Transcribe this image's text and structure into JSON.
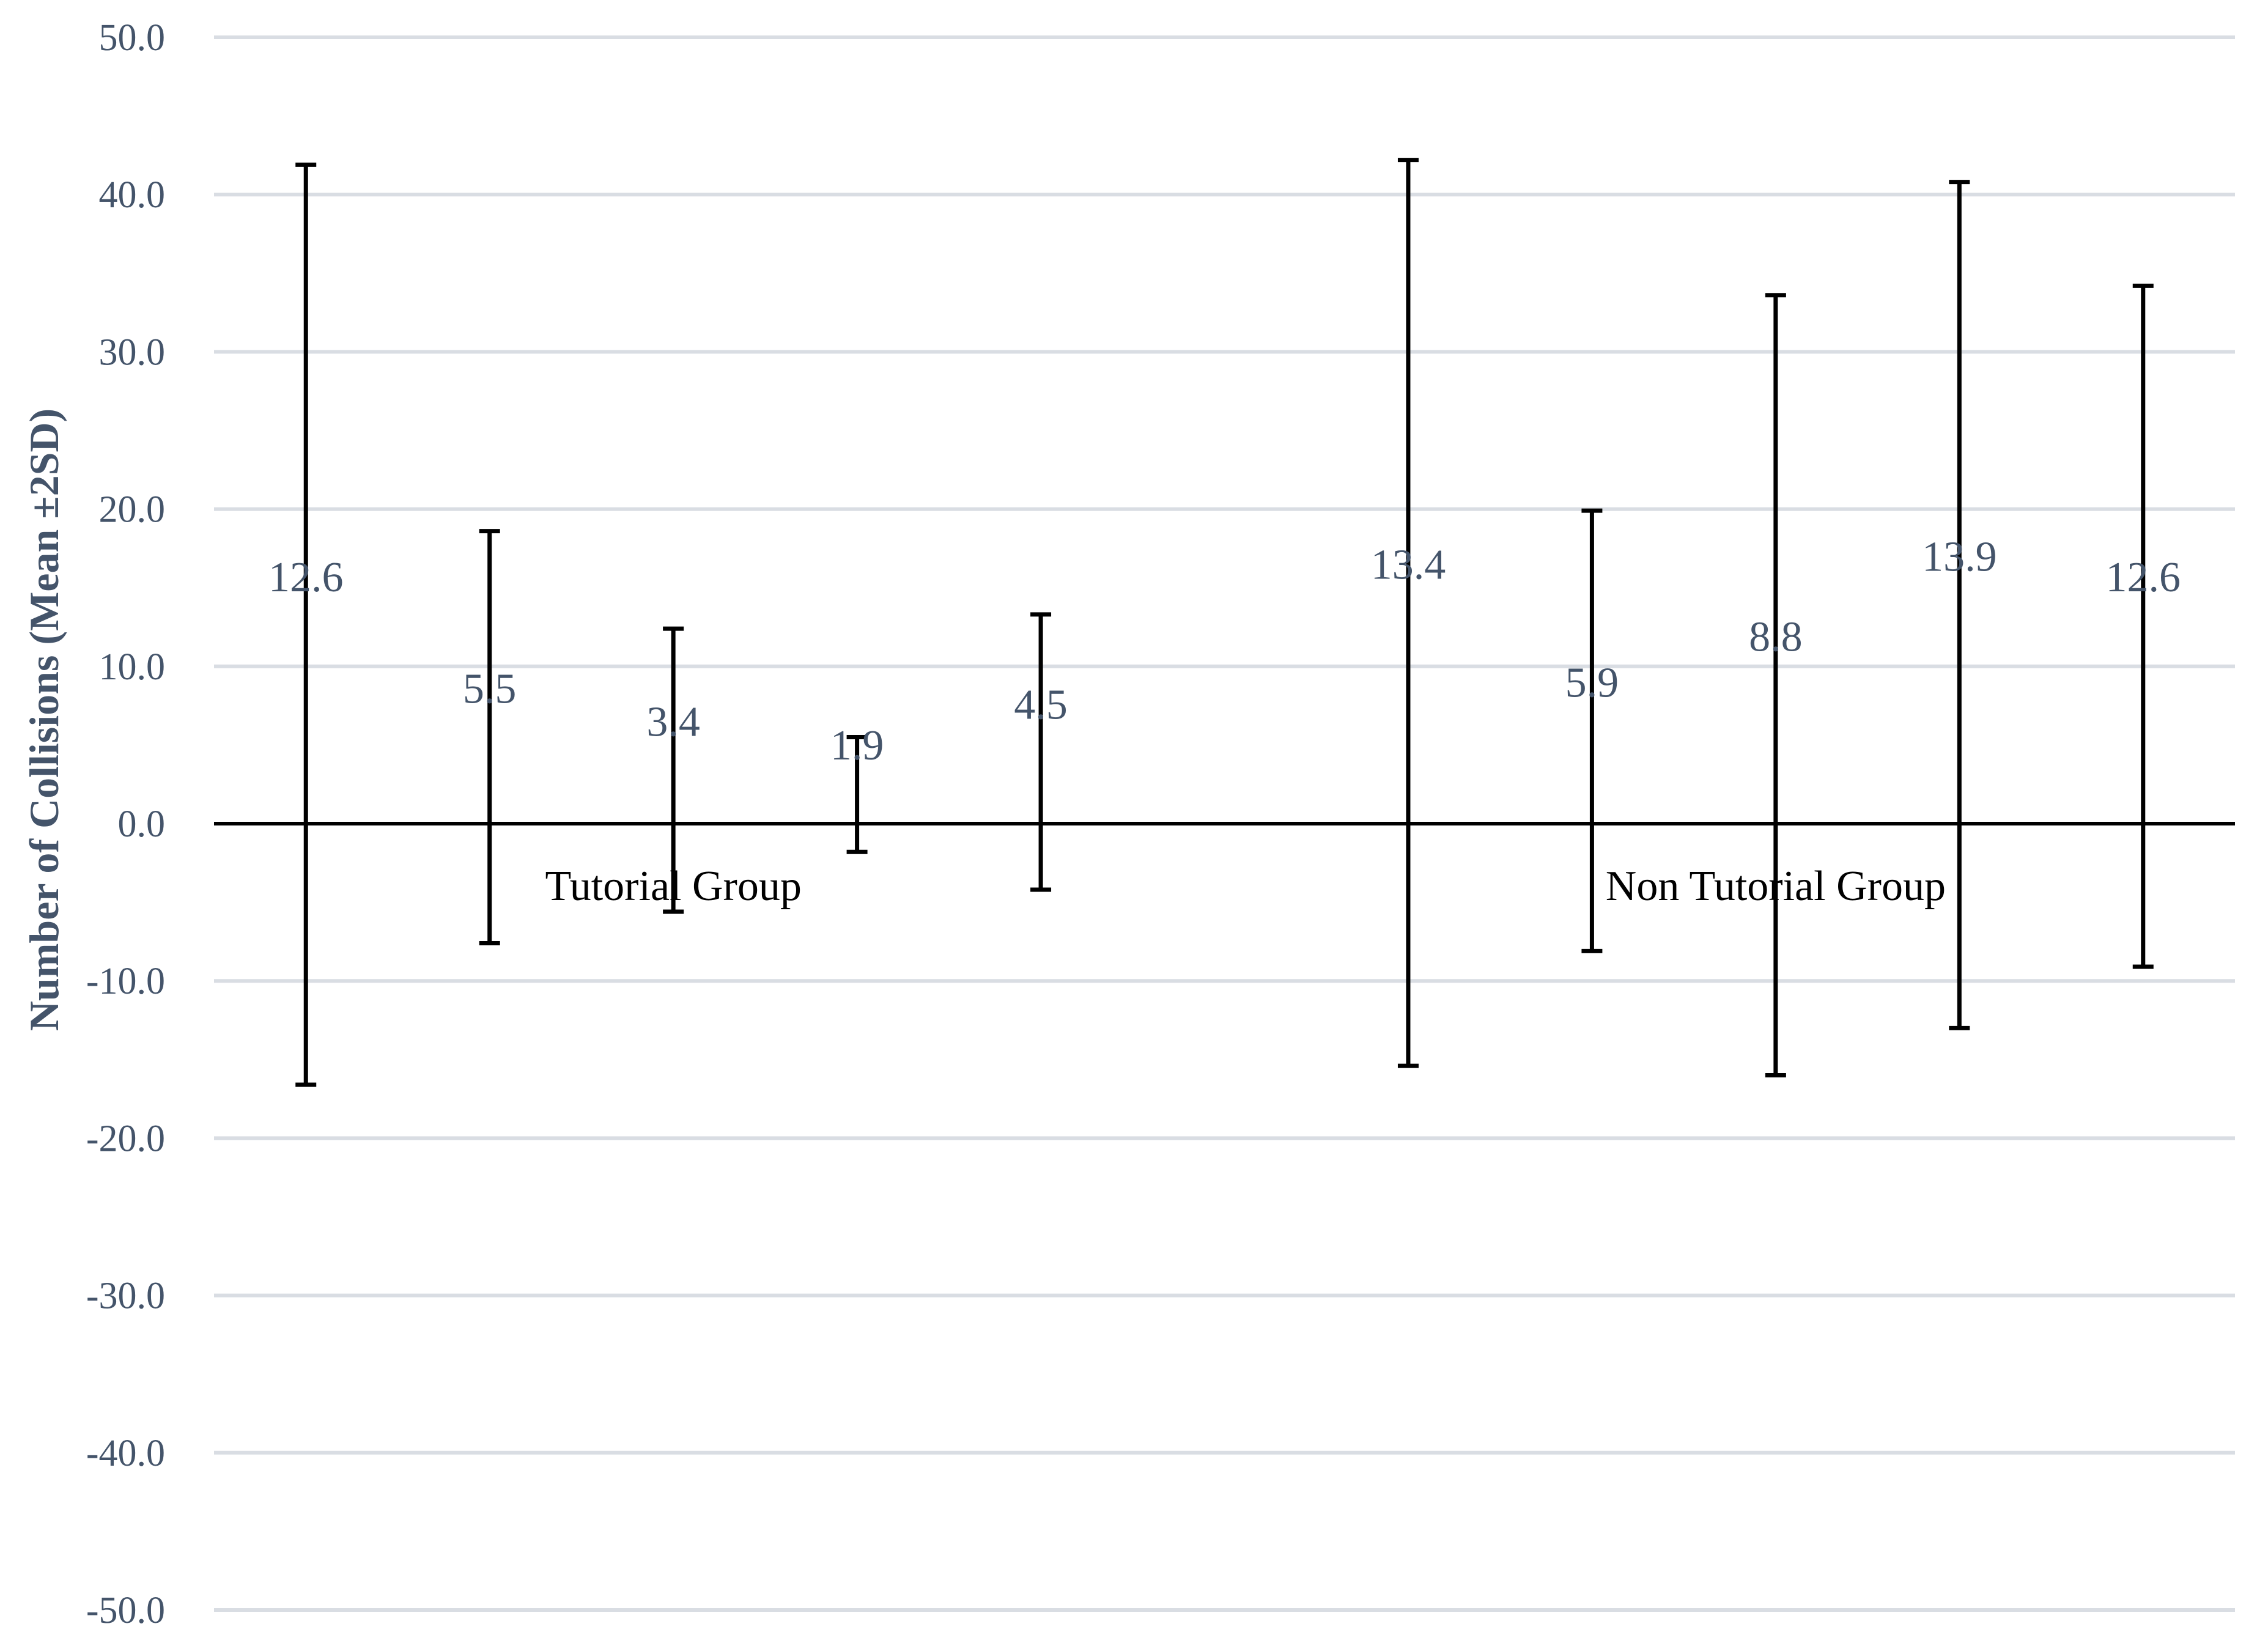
{
  "chart_data": {
    "type": "errorbar",
    "title": "",
    "ylabel": "Number of Collisions (Mean ±2SD)",
    "ylim": [
      -50,
      50
    ],
    "yticks": [
      "50.0",
      "40.0",
      "30.0",
      "20.0",
      "10.0",
      "0.0",
      "-10.0",
      "-20.0",
      "-30.0",
      "-40.0",
      "-50.0"
    ],
    "grid": true,
    "groups": [
      {
        "name": "Tutorial Group",
        "points": [
          {
            "mean": 12.6,
            "label": "12.6",
            "upper": 41.9,
            "lower": -16.6
          },
          {
            "mean": 5.5,
            "label": "5.5",
            "upper": 18.6,
            "lower": -7.6
          },
          {
            "mean": 3.4,
            "label": "3.4",
            "upper": 12.4,
            "lower": -5.6
          },
          {
            "mean": 1.9,
            "label": "1.9",
            "upper": 5.5,
            "lower": -1.8
          },
          {
            "mean": 4.5,
            "label": "4.5",
            "upper": 13.3,
            "lower": -4.2
          }
        ]
      },
      {
        "name": "Non Tutorial Group",
        "points": [
          {
            "mean": 13.4,
            "label": "13.4",
            "upper": 42.2,
            "lower": -15.4
          },
          {
            "mean": 5.9,
            "label": "5.9",
            "upper": 19.9,
            "lower": -8.1
          },
          {
            "mean": 8.8,
            "label": "8.8",
            "upper": 33.6,
            "lower": -16.0
          },
          {
            "mean": 13.9,
            "label": "13.9",
            "upper": 40.8,
            "lower": -13.0
          },
          {
            "mean": 12.6,
            "label": "12.6",
            "upper": 34.2,
            "lower": -9.1
          }
        ]
      }
    ],
    "colors": {
      "grid": "#d9dde3",
      "axis": "#000000",
      "bar": "#000000",
      "text": "#44546a"
    }
  }
}
